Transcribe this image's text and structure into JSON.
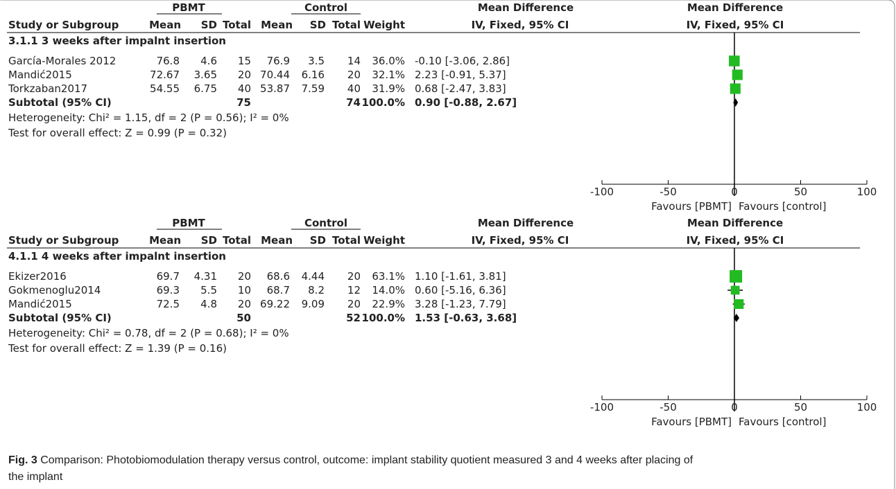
{
  "caption": {
    "label": "Fig. 3",
    "line1": " Comparison: Photobiomodulation therapy versus control, outcome: implant stability quotient measured 3 and 4 weeks after placing of",
    "line2": "the implant"
  },
  "colors": {
    "marker": "#22bb22",
    "line": "#000000",
    "diamond": "#000000"
  },
  "headers": {
    "pbmt": "PBMT",
    "control": "Control",
    "md": "Mean Difference",
    "study": "Study or Subgroup",
    "mean": "Mean",
    "sd": "SD",
    "total": "Total",
    "weight": "Weight",
    "method": "IV, Fixed, 95% CI"
  },
  "chart_data": [
    {
      "type": "forest",
      "subgroup": "3.1.1 3 weeks after impalnt insertion",
      "studies": [
        {
          "name": "García-Morales 2012",
          "pbmt_mean": "76.8",
          "pbmt_sd": "4.6",
          "pbmt_total": "15",
          "ctrl_mean": "76.9",
          "ctrl_sd": "3.5",
          "ctrl_total": "14",
          "weight": "36.0%",
          "ci_text": "-0.10 [-3.06, 2.86]",
          "md": -0.1,
          "lo": -3.06,
          "hi": 2.86,
          "w": 36.0
        },
        {
          "name": "Mandić2015",
          "pbmt_mean": "72.67",
          "pbmt_sd": "3.65",
          "pbmt_total": "20",
          "ctrl_mean": "70.44",
          "ctrl_sd": "6.16",
          "ctrl_total": "20",
          "weight": "32.1%",
          "ci_text": "2.23 [-0.91, 5.37]",
          "md": 2.23,
          "lo": -0.91,
          "hi": 5.37,
          "w": 32.1
        },
        {
          "name": "Torkzaban2017",
          "pbmt_mean": "54.55",
          "pbmt_sd": "6.75",
          "pbmt_total": "40",
          "ctrl_mean": "53.87",
          "ctrl_sd": "7.59",
          "ctrl_total": "40",
          "weight": "31.9%",
          "ci_text": "0.68 [-2.47, 3.83]",
          "md": 0.68,
          "lo": -2.47,
          "hi": 3.83,
          "w": 31.9
        }
      ],
      "subtotal": {
        "label": "Subtotal (95% CI)",
        "pbmt_total": "75",
        "ctrl_total": "74",
        "weight": "100.0%",
        "ci_text": "0.90 [-0.88, 2.67]",
        "md": 0.9,
        "lo": -0.88,
        "hi": 2.67
      },
      "heterogeneity": "Heterogeneity: Chi² = 1.15, df = 2 (P = 0.56); I² = 0%",
      "overall": "Test for overall effect: Z = 0.99 (P = 0.32)",
      "axis": {
        "ticks": [
          -100,
          -50,
          0,
          50,
          100
        ],
        "tick_labels": [
          "-100",
          "-50",
          "0",
          "50",
          "100"
        ],
        "range": [
          -100,
          100
        ],
        "left_label": "Favours [PBMT]",
        "right_label": "Favours [control]"
      }
    },
    {
      "type": "forest",
      "subgroup": "4.1.1 4 weeks after impalnt insertion",
      "studies": [
        {
          "name": "Ekizer2016",
          "pbmt_mean": "69.7",
          "pbmt_sd": "4.31",
          "pbmt_total": "20",
          "ctrl_mean": "68.6",
          "ctrl_sd": "4.44",
          "ctrl_total": "20",
          "weight": "63.1%",
          "ci_text": "1.10 [-1.61, 3.81]",
          "md": 1.1,
          "lo": -1.61,
          "hi": 3.81,
          "w": 63.1
        },
        {
          "name": "Gokmenoglu2014",
          "pbmt_mean": "69.3",
          "pbmt_sd": "5.5",
          "pbmt_total": "10",
          "ctrl_mean": "68.7",
          "ctrl_sd": "8.2",
          "ctrl_total": "12",
          "weight": "14.0%",
          "ci_text": "0.60 [-5.16, 6.36]",
          "md": 0.6,
          "lo": -5.16,
          "hi": 6.36,
          "w": 14.0
        },
        {
          "name": "Mandić2015",
          "pbmt_mean": "72.5",
          "pbmt_sd": "4.8",
          "pbmt_total": "20",
          "ctrl_mean": "69.22",
          "ctrl_sd": "9.09",
          "ctrl_total": "20",
          "weight": "22.9%",
          "ci_text": "3.28 [-1.23, 7.79]",
          "md": 3.28,
          "lo": -1.23,
          "hi": 7.79,
          "w": 22.9
        }
      ],
      "subtotal": {
        "label": "Subtotal (95% CI)",
        "pbmt_total": "50",
        "ctrl_total": "52",
        "weight": "100.0%",
        "ci_text": "1.53 [-0.63, 3.68]",
        "md": 1.53,
        "lo": -0.63,
        "hi": 3.68
      },
      "heterogeneity": "Heterogeneity: Chi² = 0.78, df = 2 (P = 0.68); I² = 0%",
      "overall": "Test for overall effect: Z = 1.39 (P = 0.16)",
      "axis": {
        "ticks": [
          -100,
          -50,
          0,
          50,
          100
        ],
        "tick_labels": [
          "-100",
          "-50",
          "0",
          "50",
          "100"
        ],
        "range": [
          -100,
          100
        ],
        "left_label": "Favours [PBMT]",
        "right_label": "Favours [control]"
      }
    }
  ]
}
